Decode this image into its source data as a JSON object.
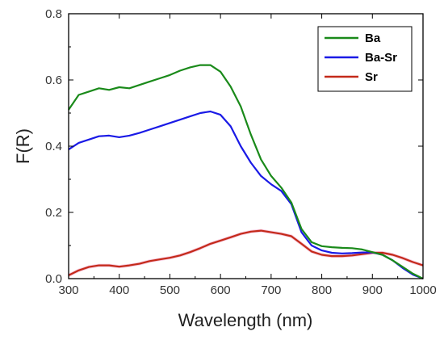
{
  "chart_data": {
    "type": "line",
    "xlabel": "Wavelength (nm)",
    "ylabel": "F(R)",
    "xlim": [
      300,
      1000
    ],
    "ylim": [
      0,
      0.8
    ],
    "xticks": [
      300,
      400,
      500,
      600,
      700,
      800,
      900,
      1000
    ],
    "yticks": [
      0.0,
      0.2,
      0.4,
      0.6,
      0.8
    ],
    "xtick_labels": [
      "300",
      "400",
      "500",
      "600",
      "700",
      "800",
      "900",
      "1000"
    ],
    "ytick_labels": [
      "0.0",
      "0.2",
      "0.4",
      "0.6",
      "0.8"
    ],
    "grid": false,
    "legend_position": "top-right",
    "series": [
      {
        "name": "Ba",
        "color": "#1a8a1a",
        "x": [
          300,
          320,
          340,
          360,
          380,
          400,
          420,
          440,
          460,
          480,
          500,
          520,
          540,
          560,
          580,
          600,
          620,
          640,
          660,
          680,
          700,
          720,
          740,
          760,
          780,
          800,
          820,
          840,
          860,
          880,
          900,
          920,
          940,
          960,
          980,
          1000
        ],
        "y": [
          0.51,
          0.555,
          0.565,
          0.575,
          0.57,
          0.578,
          0.575,
          0.585,
          0.595,
          0.605,
          0.615,
          0.628,
          0.638,
          0.645,
          0.645,
          0.625,
          0.58,
          0.52,
          0.435,
          0.36,
          0.31,
          0.275,
          0.23,
          0.15,
          0.11,
          0.098,
          0.095,
          0.093,
          0.092,
          0.088,
          0.08,
          0.072,
          0.055,
          0.035,
          0.015,
          0.0
        ]
      },
      {
        "name": "Ba-Sr",
        "color": "#1a1ae6",
        "x": [
          300,
          320,
          340,
          360,
          380,
          400,
          420,
          440,
          460,
          480,
          500,
          520,
          540,
          560,
          580,
          600,
          620,
          640,
          660,
          680,
          700,
          720,
          740,
          760,
          780,
          800,
          820,
          840,
          860,
          880,
          900,
          920,
          940,
          960,
          980,
          1000
        ],
        "y": [
          0.39,
          0.41,
          0.42,
          0.43,
          0.432,
          0.427,
          0.432,
          0.44,
          0.45,
          0.46,
          0.47,
          0.48,
          0.49,
          0.5,
          0.505,
          0.495,
          0.46,
          0.4,
          0.35,
          0.31,
          0.285,
          0.265,
          0.225,
          0.14,
          0.1,
          0.085,
          0.078,
          0.076,
          0.077,
          0.079,
          0.079,
          0.072,
          0.055,
          0.032,
          0.012,
          0.0
        ]
      },
      {
        "name": "Sr",
        "color": "#c42a1a",
        "x": [
          300,
          320,
          340,
          360,
          380,
          400,
          420,
          440,
          460,
          480,
          500,
          520,
          540,
          560,
          580,
          600,
          620,
          640,
          660,
          680,
          700,
          720,
          740,
          760,
          780,
          800,
          820,
          840,
          860,
          880,
          900,
          920,
          940,
          960,
          980,
          1000
        ],
        "y": [
          0.01,
          0.025,
          0.035,
          0.04,
          0.04,
          0.036,
          0.04,
          0.045,
          0.053,
          0.058,
          0.063,
          0.07,
          0.08,
          0.092,
          0.105,
          0.115,
          0.125,
          0.135,
          0.142,
          0.145,
          0.14,
          0.135,
          0.128,
          0.105,
          0.082,
          0.072,
          0.068,
          0.068,
          0.07,
          0.074,
          0.078,
          0.078,
          0.072,
          0.062,
          0.05,
          0.04
        ]
      }
    ]
  }
}
